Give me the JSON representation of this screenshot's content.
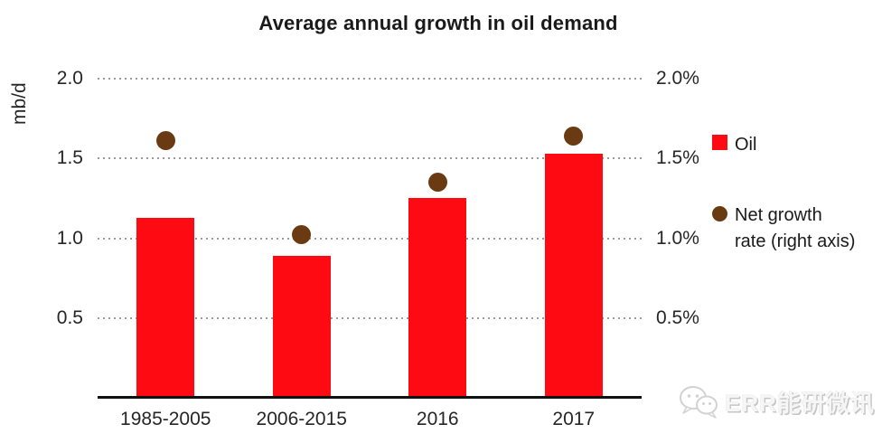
{
  "title": "Average annual growth in oil demand",
  "left_axis": {
    "unit_label": "mb/d"
  },
  "axis_ticks": [
    {
      "value": 2.0,
      "left_label": "2.0",
      "right_label": "2.0%"
    },
    {
      "value": 1.5,
      "left_label": "1.5",
      "right_label": "1.5%"
    },
    {
      "value": 1.0,
      "left_label": "1.0",
      "right_label": "1.0%"
    },
    {
      "value": 0.5,
      "left_label": "0.5",
      "right_label": "0.5%"
    }
  ],
  "legend": {
    "oil_label": "Oil",
    "net_growth_lines": [
      "Net growth",
      "rate (right axis)"
    ]
  },
  "watermark": {
    "text": "ERR能研微讯",
    "icon": "wechat-logo-icon"
  },
  "colors": {
    "bar": "#fd0a12",
    "dot": "#6a3b12",
    "grid": "#9a9a9a",
    "axis": "#111111",
    "text": "#262626"
  },
  "chart_data": {
    "type": "bar",
    "title": "Average annual growth in oil demand",
    "categories": [
      "1985-2005",
      "2006-2015",
      "2016",
      "2017"
    ],
    "series": [
      {
        "name": "Oil",
        "type": "bar",
        "axis": "left",
        "unit": "mb/d",
        "values": [
          1.13,
          0.89,
          1.25,
          1.53
        ]
      },
      {
        "name": "Net growth rate (right axis)",
        "type": "scatter",
        "axis": "right",
        "unit": "%",
        "values": [
          1.61,
          1.02,
          1.35,
          1.64
        ]
      }
    ],
    "left_axis_label": "mb/d",
    "left_ylim": [
      0,
      2.0
    ],
    "right_ylim_percent": [
      0,
      2.0
    ],
    "gridlines": "horizontal dotted every 0.5",
    "legend_position": "right"
  }
}
